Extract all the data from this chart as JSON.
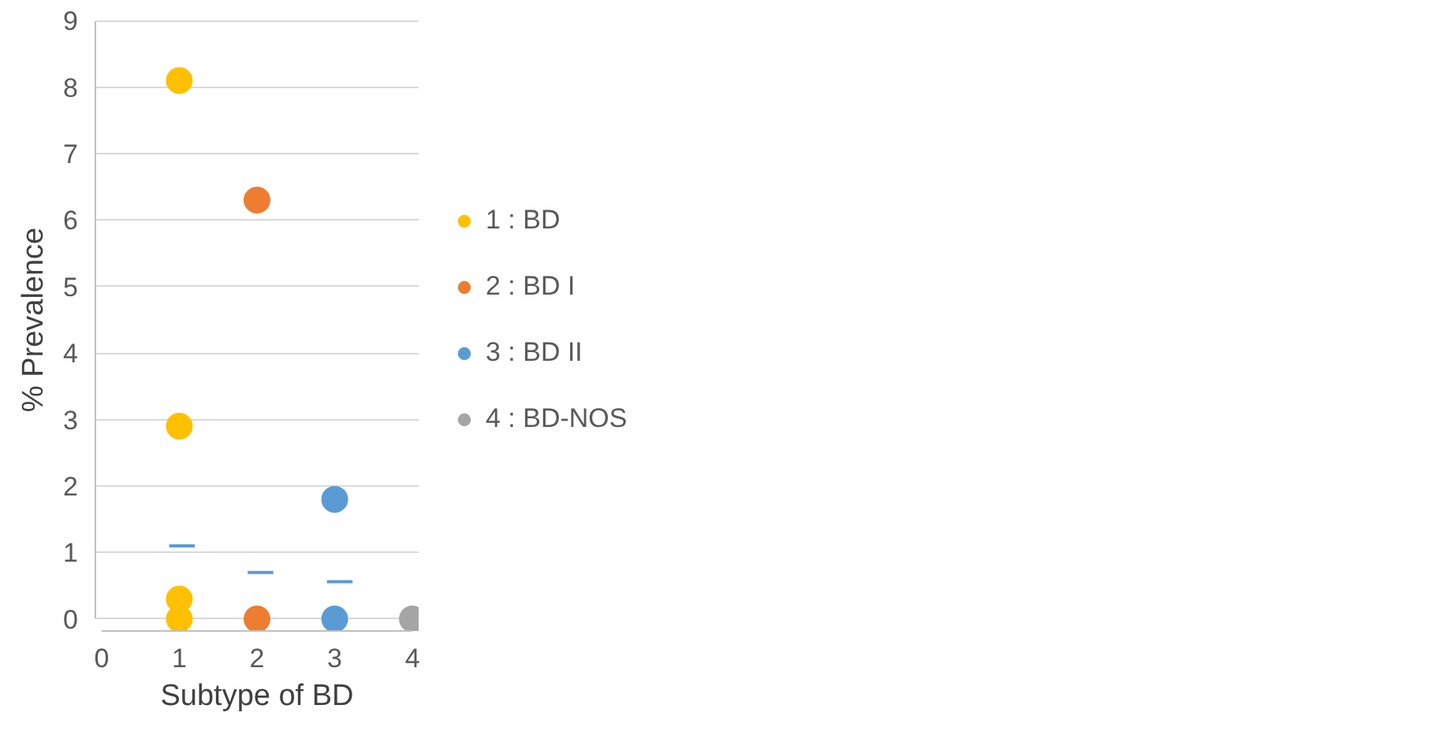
{
  "chart_data": {
    "type": "scatter",
    "xlabel": "Subtype of BD",
    "ylabel": "% Prevalence",
    "xlim": [
      0,
      4
    ],
    "xticks": [
      0,
      1,
      2,
      3,
      4
    ],
    "ylim": [
      0,
      9
    ],
    "yticks": [
      0,
      1,
      2,
      3,
      4,
      5,
      6,
      7,
      8,
      9
    ],
    "grid": "y",
    "legend": "right",
    "series": [
      {
        "name": "1 : BD",
        "marker": "circle",
        "color": "#ffc000",
        "x": [
          1,
          1,
          1,
          1
        ],
        "values": [
          8.1,
          2.9,
          0.3,
          0
        ]
      },
      {
        "name": "2 : BD I",
        "marker": "circle",
        "color": "#ed7d31",
        "x": [
          2,
          2
        ],
        "values": [
          6.3,
          0
        ]
      },
      {
        "name": "3 : BD II",
        "marker": "circle",
        "color": "#5b9bd5",
        "x": [
          3,
          3
        ],
        "values": [
          1.8,
          0
        ]
      },
      {
        "name": "4 : BD-NOS",
        "marker": "circle",
        "color": "#a5a5a5",
        "x": [
          4
        ],
        "values": [
          0
        ]
      },
      {
        "type": "line",
        "marker": "none",
        "color": "#5b9bd5",
        "x": [
          0.87,
          1.2
        ],
        "values": [
          1.1,
          1.1
        ]
      },
      {
        "type": "line",
        "marker": "none",
        "color": "#5b9bd5",
        "x": [
          1.88,
          2.21
        ],
        "values": [
          0.7,
          0.7
        ]
      },
      {
        "type": "line",
        "marker": "none",
        "color": "#5b9bd5",
        "x": [
          2.9,
          3.23
        ],
        "values": [
          0.56,
          0.56
        ]
      }
    ]
  }
}
